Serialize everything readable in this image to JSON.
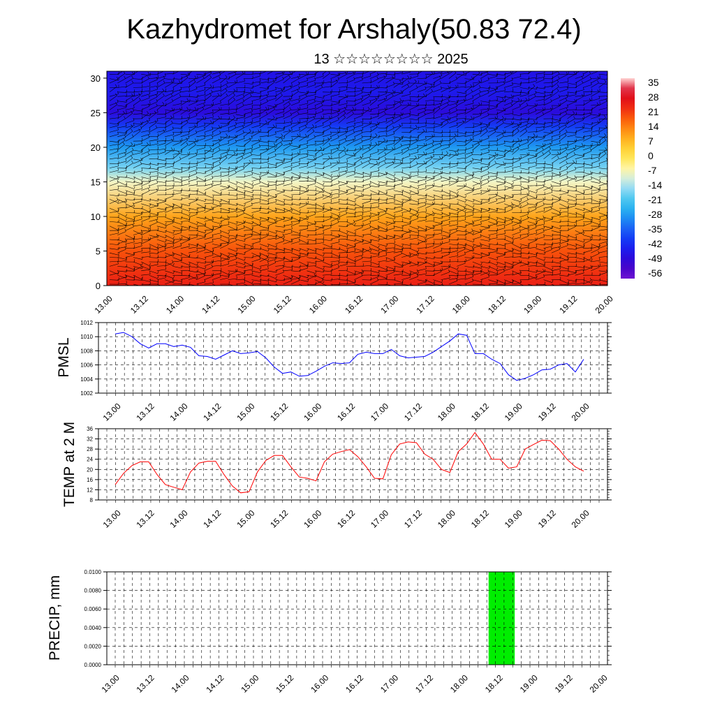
{
  "title": "Kazhydromet for Arshaly(50.83 72.4)",
  "subtitle": "13 ☆☆☆☆☆☆☆☆ 2025",
  "time_ticks": [
    "13.00",
    "13.12",
    "14.00",
    "14.12",
    "15.00",
    "15.12",
    "16.00",
    "16.12",
    "17.00",
    "17.12",
    "18.00",
    "18.12",
    "19.00",
    "19.12",
    "20.00"
  ],
  "colors": {
    "pmsl_line": "#0000ff",
    "temp_line": "#ff0000",
    "precip_bar": "#00ee00",
    "grid": "#000000"
  },
  "chart_data": [
    {
      "type": "heatmap",
      "ylim": [
        0,
        31
      ],
      "yticks": [
        0,
        5,
        10,
        15,
        20,
        25,
        30
      ],
      "colorbar": {
        "labels": [
          "35",
          "28",
          "21",
          "14",
          "7",
          "0",
          "-7",
          "-14",
          "-21",
          "-28",
          "-35",
          "-42",
          "-49",
          "-56"
        ],
        "range": [
          -63,
          42
        ]
      },
      "overlay": "wind barbs",
      "temperature_profile_by_level": [
        {
          "level": 0,
          "temp": 28
        },
        {
          "level": 5,
          "temp": 22
        },
        {
          "level": 10,
          "temp": 12
        },
        {
          "level": 15,
          "temp": -8
        },
        {
          "level": 17,
          "temp": -18
        },
        {
          "level": 20,
          "temp": -30
        },
        {
          "level": 23,
          "temp": -42
        },
        {
          "level": 25,
          "temp": -52
        },
        {
          "level": 28,
          "temp": -48
        },
        {
          "level": 31,
          "temp": -50
        }
      ]
    },
    {
      "type": "line",
      "ylabel": "PMSL",
      "ylim": [
        1002,
        1012
      ],
      "yticks": [
        1002,
        1004,
        1006,
        1008,
        1010,
        1012
      ],
      "x_step_hours": 3,
      "values": [
        1010.4,
        1010.6,
        1010.0,
        1009.0,
        1008.4,
        1009.0,
        1009.0,
        1008.6,
        1008.8,
        1008.5,
        1007.3,
        1007.2,
        1006.8,
        1007.4,
        1008.0,
        1007.6,
        1007.7,
        1007.9,
        1007.0,
        1005.7,
        1004.8,
        1005.0,
        1004.4,
        1004.5,
        1005.1,
        1005.8,
        1006.3,
        1006.2,
        1006.3,
        1007.5,
        1007.8,
        1007.6,
        1007.6,
        1008.2,
        1007.3,
        1007.0,
        1007.1,
        1007.2,
        1007.8,
        1008.6,
        1009.4,
        1010.4,
        1010.2,
        1007.6,
        1007.6,
        1006.8,
        1006.2,
        1004.6,
        1003.8,
        1004.1,
        1004.6,
        1005.3,
        1005.4,
        1006.0,
        1006.2,
        1005.0,
        1006.8
      ]
    },
    {
      "type": "line",
      "ylabel": "TEMP at 2 M",
      "ylim": [
        8,
        36
      ],
      "yticks": [
        8,
        12,
        16,
        20,
        24,
        28,
        32,
        36
      ],
      "x_step_hours": 3,
      "values": [
        14,
        18.5,
        21.5,
        23,
        23,
        18,
        14,
        13,
        12,
        19,
        22.5,
        23.2,
        23.2,
        18,
        13.5,
        10.8,
        11.2,
        19,
        23.5,
        25.5,
        25.5,
        21,
        17,
        16.5,
        15.5,
        23,
        26,
        27,
        27.8,
        25,
        21,
        16.5,
        16.3,
        25.8,
        30,
        30.8,
        30.5,
        26,
        24,
        20,
        18.8,
        27,
        30,
        34.5,
        30,
        24,
        24,
        20.5,
        21,
        28,
        29.8,
        31.5,
        31.3,
        28,
        24,
        21,
        19.3
      ]
    },
    {
      "type": "bar",
      "ylabel": "PRECIP, mm",
      "ylim": [
        0,
        0.01
      ],
      "ytick_labels": [
        "0.0000",
        "0.0020",
        "0.0040",
        "0.0060",
        "0.0080",
        "0.0100"
      ],
      "bars": [
        {
          "x_start_hours": 129,
          "x_end_hours": 138,
          "value": 0.01
        }
      ]
    }
  ]
}
